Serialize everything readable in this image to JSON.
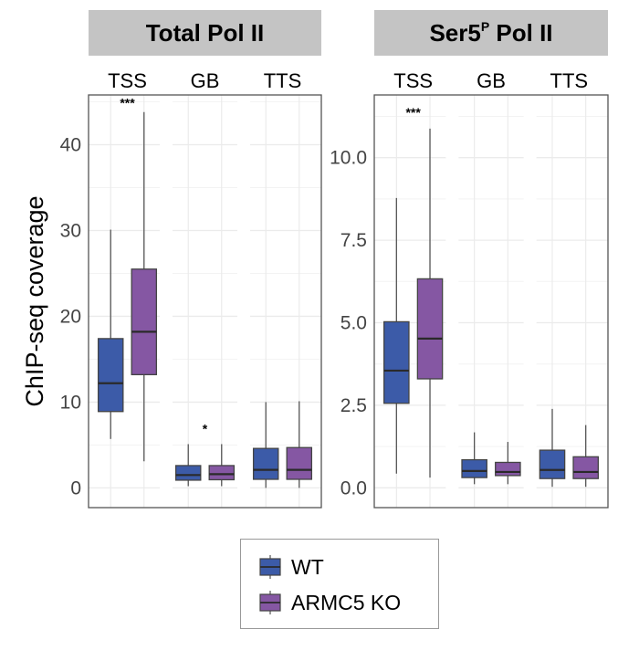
{
  "chart_data": [
    {
      "type": "box",
      "title": "Total Pol II",
      "title_sup": "",
      "ylabel": "ChIP-seq coverage",
      "ylim": [
        -2.3,
        45.8
      ],
      "yticks": [
        0,
        10,
        20,
        30,
        40
      ],
      "ytick_labels": [
        "0",
        "10",
        "20",
        "30",
        "40"
      ],
      "grid": true,
      "categories": [
        "TSS",
        "GB",
        "TTS"
      ],
      "series": [
        {
          "name": "WT",
          "boxes": [
            {
              "whisker_low": 5.7,
              "q1": 8.9,
              "median": 12.2,
              "q3": 17.4,
              "whisker_high": 30.1
            },
            {
              "whisker_low": 0.2,
              "q1": 0.9,
              "median": 1.5,
              "q3": 2.6,
              "whisker_high": 5.1
            },
            {
              "whisker_low": 0.0,
              "q1": 1.0,
              "median": 2.1,
              "q3": 4.6,
              "whisker_high": 10.0
            }
          ]
        },
        {
          "name": "ARMC5 KO",
          "boxes": [
            {
              "whisker_low": 3.1,
              "q1": 13.2,
              "median": 18.2,
              "q3": 25.5,
              "whisker_high": 43.8
            },
            {
              "whisker_low": 0.2,
              "q1": 0.95,
              "median": 1.6,
              "q3": 2.6,
              "whisker_high": 5.1
            },
            {
              "whisker_low": 0.0,
              "q1": 1.0,
              "median": 2.1,
              "q3": 4.7,
              "whisker_high": 10.1
            }
          ]
        }
      ],
      "annotations": [
        {
          "category": "TSS",
          "text": "***",
          "y": 45.0
        },
        {
          "category": "GB",
          "text": "*",
          "y": 7.0
        }
      ]
    },
    {
      "type": "box",
      "title": "Ser5",
      "title_sup": "P",
      "title_suffix": " Pol II",
      "ylabel": "",
      "ylim": [
        -0.6,
        11.9
      ],
      "yticks": [
        0,
        2.5,
        5,
        7.5,
        10
      ],
      "ytick_labels": [
        "0.0",
        "2.5",
        "5.0",
        "7.5",
        "10.0"
      ],
      "grid": true,
      "categories": [
        "TSS",
        "GB",
        "TTS"
      ],
      "series": [
        {
          "name": "WT",
          "boxes": [
            {
              "whisker_low": 0.43,
              "q1": 2.56,
              "median": 3.55,
              "q3": 5.03,
              "whisker_high": 8.78
            },
            {
              "whisker_low": 0.11,
              "q1": 0.31,
              "median": 0.51,
              "q3": 0.85,
              "whisker_high": 1.68
            },
            {
              "whisker_low": 0.03,
              "q1": 0.28,
              "median": 0.54,
              "q3": 1.14,
              "whisker_high": 2.39
            }
          ]
        },
        {
          "name": "ARMC5 KO",
          "boxes": [
            {
              "whisker_low": 0.31,
              "q1": 3.3,
              "median": 4.52,
              "q3": 6.33,
              "whisker_high": 10.88
            },
            {
              "whisker_low": 0.11,
              "q1": 0.37,
              "median": 0.48,
              "q3": 0.77,
              "whisker_high": 1.39
            },
            {
              "whisker_low": 0.03,
              "q1": 0.28,
              "median": 0.48,
              "q3": 0.94,
              "whisker_high": 1.9
            }
          ]
        }
      ],
      "annotations": [
        {
          "category": "TSS",
          "text": "***",
          "y": 11.4
        }
      ]
    }
  ],
  "legend": {
    "placement": "bottom-center",
    "entries": [
      {
        "label": "WT",
        "color": "#3c5ba8"
      },
      {
        "label": "ARMC5 KO",
        "color": "#8557a3"
      }
    ]
  },
  "colors": {
    "WT": "#3c5ba8",
    "ARMC5 KO": "#8557a3",
    "strip": "#c4c4c4",
    "grid": "#ebebeb",
    "border": "#555555"
  }
}
